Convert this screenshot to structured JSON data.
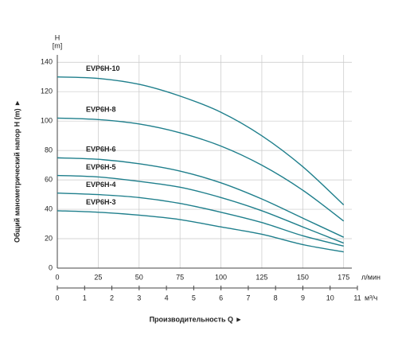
{
  "chart_data": {
    "type": "line",
    "y_title": "H",
    "y_unit": "[m]",
    "y_label": "Общий манометрический напор Н (m)  ►",
    "x_label": "Производительность Q  ►",
    "x_unit": "л/мин",
    "x2_unit": "м³/ч",
    "x": [
      0,
      25,
      50,
      75,
      100,
      125,
      150,
      175
    ],
    "series": [
      {
        "name": "EVP6H-10",
        "color": "#1f7f8c",
        "values": [
          130,
          129,
          125,
          117,
          106,
          90,
          69,
          43
        ]
      },
      {
        "name": "EVP6H-8",
        "color": "#1f7f8c",
        "values": [
          102,
          101,
          98,
          92,
          83,
          70,
          53,
          32
        ]
      },
      {
        "name": "EVP6H-6",
        "color": "#1f7f8c",
        "values": [
          75,
          74,
          71,
          66,
          58,
          47,
          34,
          21
        ]
      },
      {
        "name": "EVP6H-5",
        "color": "#1f7f8c",
        "values": [
          63,
          62,
          59,
          55,
          48,
          39,
          28,
          17
        ]
      },
      {
        "name": "EVP6H-4",
        "color": "#1f7f8c",
        "values": [
          51,
          50,
          48,
          44,
          38,
          31,
          22,
          15
        ]
      },
      {
        "name": "EVP6H-3",
        "color": "#1f7f8c",
        "values": [
          39,
          38,
          36,
          33,
          28,
          23,
          16,
          11
        ]
      }
    ],
    "xlim": [
      0,
      180
    ],
    "xticks": [
      0,
      25,
      50,
      75,
      100,
      125,
      150,
      175
    ],
    "ylim": [
      0,
      145
    ],
    "yticks": [
      0,
      20,
      40,
      60,
      80,
      100,
      120,
      140
    ],
    "x2lim": [
      0,
      11
    ],
    "x2ticks": [
      0,
      1,
      2,
      3,
      4,
      5,
      6,
      7,
      8,
      9,
      10,
      11
    ],
    "grid": true
  }
}
